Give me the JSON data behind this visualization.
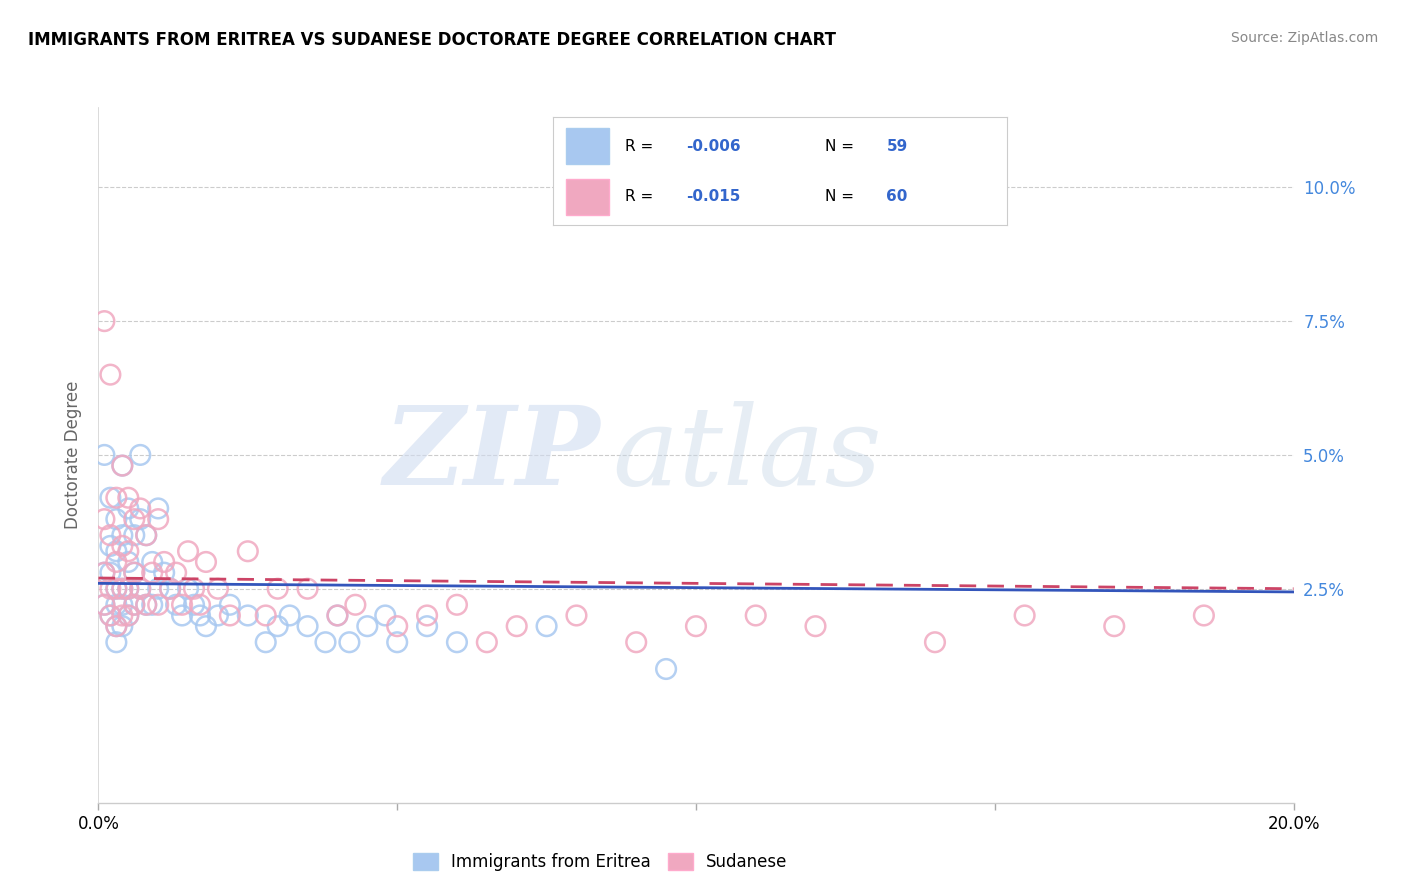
{
  "title": "IMMIGRANTS FROM ERITREA VS SUDANESE DOCTORATE DEGREE CORRELATION CHART",
  "source": "Source: ZipAtlas.com",
  "ylabel": "Doctorate Degree",
  "xlim": [
    0.0,
    0.2
  ],
  "ylim": [
    -0.015,
    0.115
  ],
  "xtick_positions": [
    0.0,
    0.05,
    0.1,
    0.15,
    0.2
  ],
  "xtick_labels_show": [
    "0.0%",
    "",
    "",
    "",
    "20.0%"
  ],
  "ytick_positions": [
    0.0,
    0.025,
    0.05,
    0.075,
    0.1
  ],
  "ytick_labels_show": [
    "",
    "2.5%",
    "5.0%",
    "7.5%",
    "10.0%"
  ],
  "legend_R_eritrea": "-0.006",
  "legend_N_eritrea": "59",
  "legend_R_sudanese": "-0.015",
  "legend_N_sudanese": "60",
  "color_eritrea": "#A8C8F0",
  "color_sudanese": "#F0A8C0",
  "trendline_color_eritrea": "#3355BB",
  "trendline_color_sudanese": "#CC4466",
  "background_color": "#FFFFFF",
  "eritrea_x": [
    0.001,
    0.001,
    0.001,
    0.002,
    0.002,
    0.002,
    0.002,
    0.003,
    0.003,
    0.003,
    0.003,
    0.003,
    0.003,
    0.004,
    0.004,
    0.004,
    0.004,
    0.004,
    0.005,
    0.005,
    0.005,
    0.005,
    0.006,
    0.006,
    0.006,
    0.007,
    0.007,
    0.007,
    0.008,
    0.008,
    0.009,
    0.009,
    0.01,
    0.01,
    0.011,
    0.012,
    0.013,
    0.014,
    0.015,
    0.016,
    0.017,
    0.018,
    0.02,
    0.022,
    0.025,
    0.028,
    0.03,
    0.032,
    0.035,
    0.038,
    0.04,
    0.042,
    0.045,
    0.048,
    0.05,
    0.055,
    0.06,
    0.075,
    0.095
  ],
  "eritrea_y": [
    0.05,
    0.028,
    0.022,
    0.042,
    0.033,
    0.028,
    0.02,
    0.038,
    0.032,
    0.025,
    0.022,
    0.018,
    0.015,
    0.048,
    0.035,
    0.025,
    0.022,
    0.018,
    0.04,
    0.03,
    0.025,
    0.02,
    0.035,
    0.028,
    0.022,
    0.05,
    0.038,
    0.025,
    0.035,
    0.022,
    0.03,
    0.022,
    0.04,
    0.025,
    0.028,
    0.025,
    0.022,
    0.02,
    0.025,
    0.022,
    0.02,
    0.018,
    0.02,
    0.022,
    0.02,
    0.015,
    0.018,
    0.02,
    0.018,
    0.015,
    0.02,
    0.015,
    0.018,
    0.02,
    0.015,
    0.018,
    0.015,
    0.018,
    0.01
  ],
  "sudanese_x": [
    0.001,
    0.001,
    0.001,
    0.001,
    0.002,
    0.002,
    0.002,
    0.002,
    0.003,
    0.003,
    0.003,
    0.003,
    0.004,
    0.004,
    0.004,
    0.004,
    0.005,
    0.005,
    0.005,
    0.005,
    0.006,
    0.006,
    0.006,
    0.007,
    0.007,
    0.008,
    0.008,
    0.009,
    0.01,
    0.01,
    0.011,
    0.012,
    0.013,
    0.014,
    0.015,
    0.016,
    0.017,
    0.018,
    0.02,
    0.022,
    0.025,
    0.028,
    0.03,
    0.035,
    0.04,
    0.043,
    0.05,
    0.055,
    0.06,
    0.065,
    0.07,
    0.08,
    0.09,
    0.1,
    0.11,
    0.12,
    0.14,
    0.155,
    0.17,
    0.185
  ],
  "sudanese_y": [
    0.075,
    0.038,
    0.028,
    0.022,
    0.065,
    0.035,
    0.025,
    0.02,
    0.042,
    0.03,
    0.025,
    0.018,
    0.048,
    0.033,
    0.025,
    0.02,
    0.042,
    0.032,
    0.025,
    0.02,
    0.038,
    0.028,
    0.022,
    0.04,
    0.025,
    0.035,
    0.022,
    0.028,
    0.038,
    0.022,
    0.03,
    0.025,
    0.028,
    0.022,
    0.032,
    0.025,
    0.022,
    0.03,
    0.025,
    0.02,
    0.032,
    0.02,
    0.025,
    0.025,
    0.02,
    0.022,
    0.018,
    0.02,
    0.022,
    0.015,
    0.018,
    0.02,
    0.015,
    0.018,
    0.02,
    0.018,
    0.015,
    0.02,
    0.018,
    0.02
  ]
}
